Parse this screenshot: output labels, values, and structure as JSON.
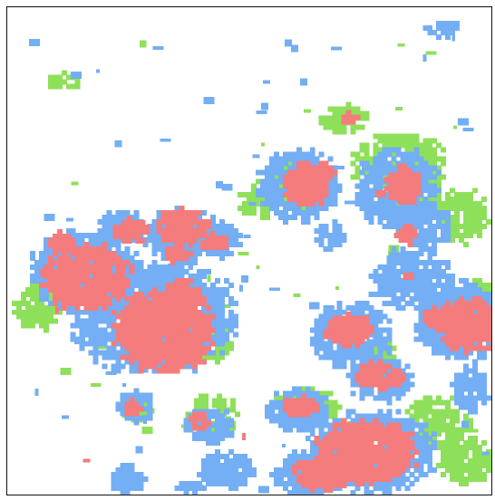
{
  "figure": {
    "kind": "categorical-pixel-map",
    "background": "#ffffff",
    "frame_color": "#111111"
  },
  "classes": [
    {
      "key": "red",
      "color": "#f47c7c"
    },
    {
      "key": "blue",
      "color": "#74aef4"
    },
    {
      "key": "green",
      "color": "#8ee05a"
    }
  ]
}
